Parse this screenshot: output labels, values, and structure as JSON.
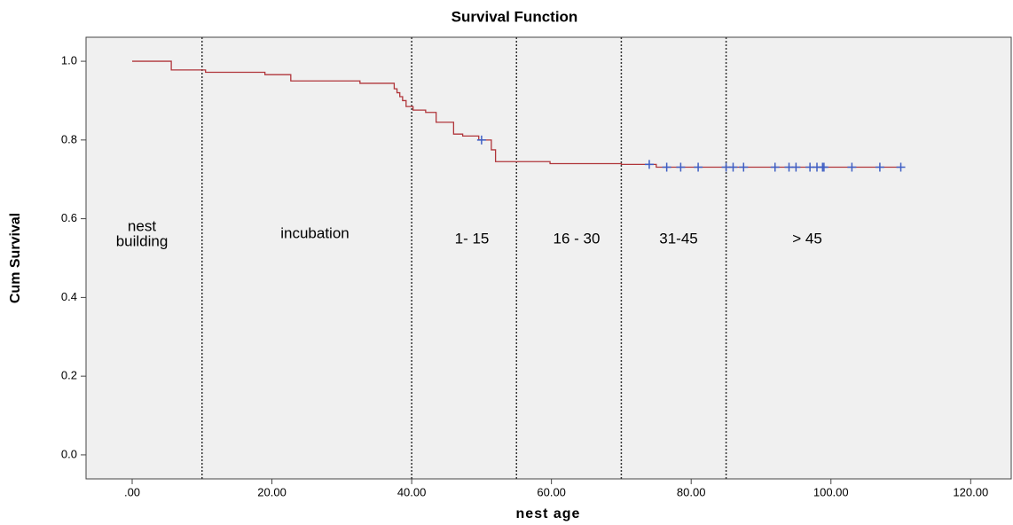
{
  "chart_data": {
    "type": "step",
    "title": "Survival Function",
    "x_label": "nest age",
    "y_label": "Cum Survival",
    "xlim": [
      -6.6,
      125.8
    ],
    "ylim": [
      -0.061,
      1.061
    ],
    "xticks": [
      {
        "value": 0,
        "label": ".00"
      },
      {
        "value": 20,
        "label": "20.00"
      },
      {
        "value": 40,
        "label": "40.00"
      },
      {
        "value": 60,
        "label": "60.00"
      },
      {
        "value": 80,
        "label": "80.00"
      },
      {
        "value": 100,
        "label": "100.00"
      },
      {
        "value": 120,
        "label": "120.00"
      }
    ],
    "yticks": [
      {
        "value": 0,
        "label": "0.0"
      },
      0.2,
      0.4,
      0.6,
      0.8,
      {
        "value": 1,
        "label": "1.0"
      }
    ],
    "steps": {
      "color": "#b0353a",
      "x": [
        0,
        5.6,
        10.5,
        19,
        22.7,
        32.6,
        37.5,
        37.9,
        38.3,
        38.7,
        39.2,
        40.2,
        42,
        43.5,
        46,
        47.3,
        49.6,
        51.4,
        52,
        59.8,
        70,
        75,
        110
      ],
      "values": [
        1.0,
        0.978,
        0.972,
        0.966,
        0.95,
        0.944,
        0.93,
        0.92,
        0.91,
        0.9,
        0.885,
        0.876,
        0.87,
        0.845,
        0.815,
        0.81,
        0.8,
        0.775,
        0.745,
        0.74,
        0.738,
        0.731,
        0.731
      ]
    },
    "censored": {
      "color": "#3f5fc4",
      "x": [
        50,
        74,
        76.5,
        78.5,
        81,
        85,
        86,
        87.5,
        92,
        94,
        95,
        97,
        98,
        98.8,
        99,
        103,
        107,
        110
      ],
      "values": [
        0.8,
        0.738,
        0.731,
        0.731,
        0.731,
        0.731,
        0.731,
        0.731,
        0.731,
        0.731,
        0.731,
        0.731,
        0.731,
        0.731,
        0.731,
        0.731,
        0.731,
        0.731
      ]
    },
    "reference_lines": [
      10,
      40,
      55,
      70,
      85
    ],
    "annotations": [
      [
        "nest",
        "building"
      ],
      [
        "incubation"
      ],
      [
        "1- 15"
      ],
      [
        "16 - 30"
      ],
      [
        "31-45"
      ],
      [
        "> 45"
      ]
    ]
  }
}
